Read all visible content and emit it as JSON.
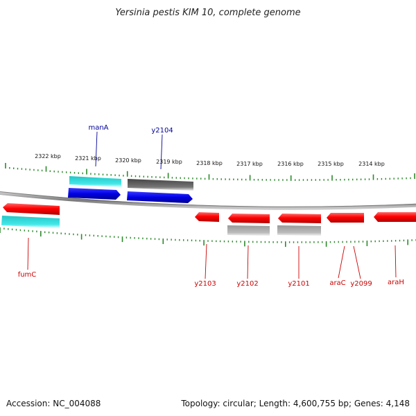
{
  "title": "Yersinia pestis KIM 10, complete genome",
  "footer": {
    "accession": "Accession: NC_004088",
    "summary": "Topology: circular; Length: 4,600,755 bp; Genes: 4,148"
  },
  "kbp_labels": [
    "2322 kbp",
    "2321 kbp",
    "2320 kbp",
    "2319 kbp",
    "2318 kbp",
    "2317 kbp",
    "2316 kbp",
    "2315 kbp",
    "2314 kbp"
  ],
  "genes_top": [
    {
      "name": "manA",
      "color": "#000099"
    },
    {
      "name": "y2104",
      "color": "#000099"
    }
  ],
  "genes_bottom": [
    {
      "name": "fumC",
      "color": "#cc0000"
    },
    {
      "name": "y2103",
      "color": "#cc0000"
    },
    {
      "name": "y2102",
      "color": "#cc0000"
    },
    {
      "name": "y2101",
      "color": "#cc0000"
    },
    {
      "name": "araC",
      "color": "#cc0000"
    },
    {
      "name": "y2099",
      "color": "#cc0000"
    },
    {
      "name": "araH",
      "color": "#cc0000"
    }
  ],
  "colors": {
    "backbone": "#8a8a8a",
    "ticks": "#2a8a2a",
    "forward_gene": "#0000ee",
    "reverse_gene": "#ff0000",
    "forward_feature": "#22cccc",
    "reverse_feature": "#22eeee",
    "dark_feature": "#555555",
    "light_feature": "#aaaaaa"
  }
}
